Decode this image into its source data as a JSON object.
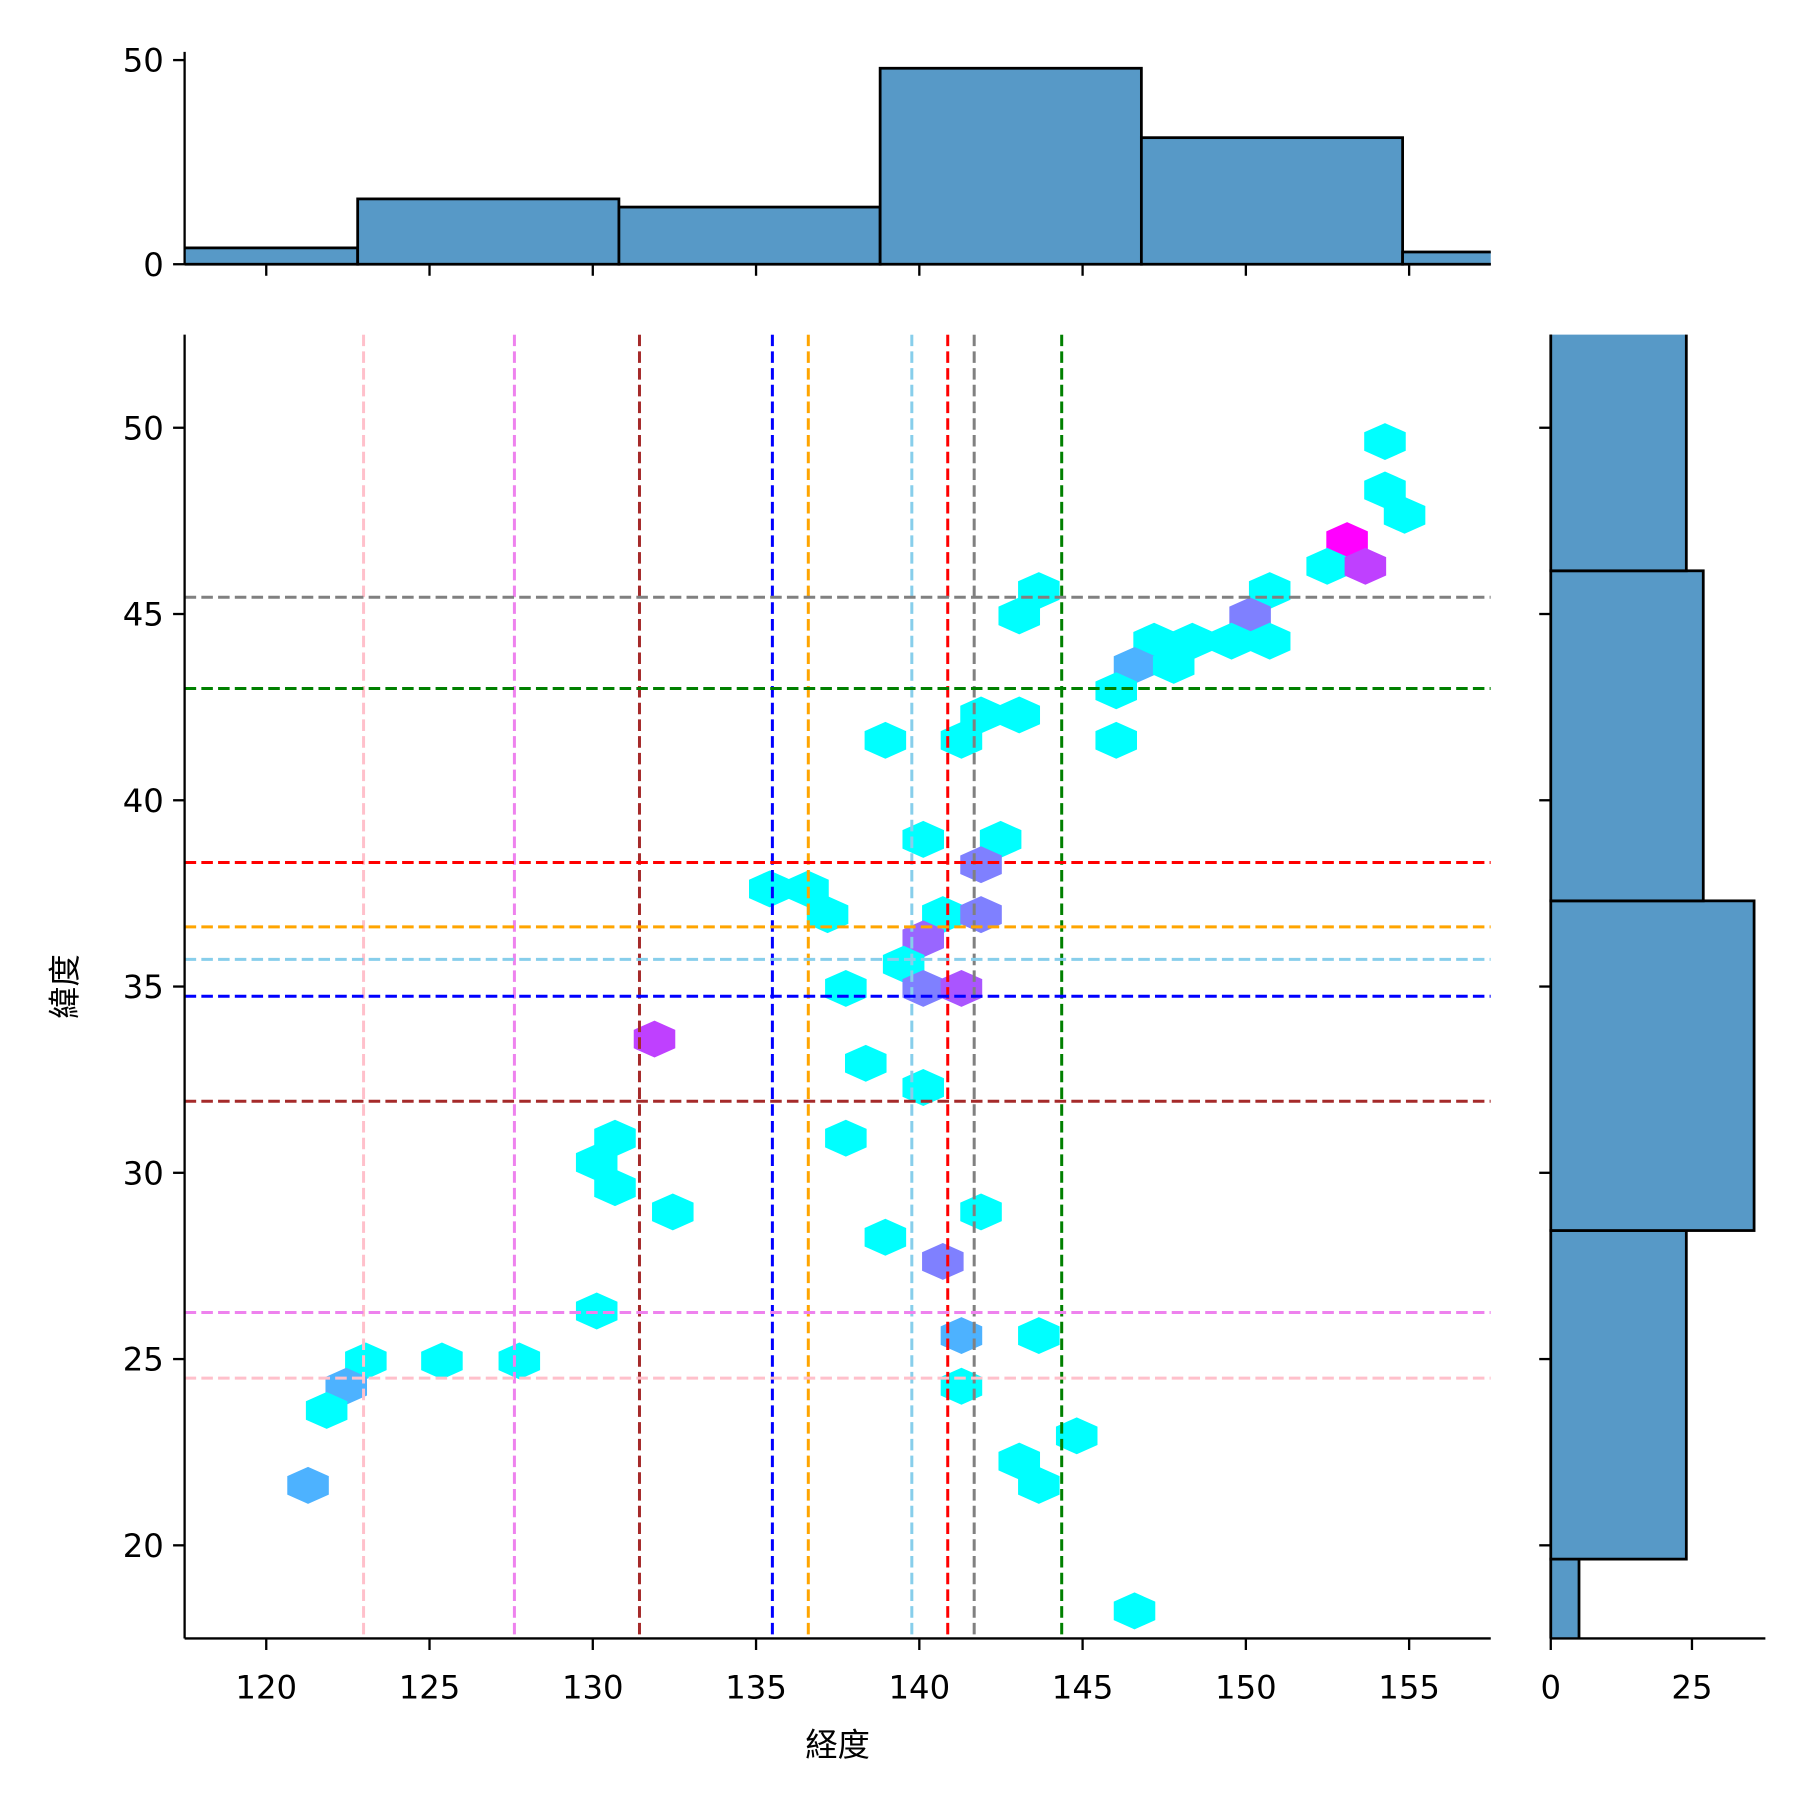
{
  "chart_data": {
    "type": "hexbin-jointplot",
    "xlabel": "経度",
    "ylabel": "緯度",
    "xlim": [
      117.5,
      157.5
    ],
    "ylim": [
      17.5,
      52.5
    ],
    "xticks": [
      "120",
      "125",
      "130",
      "135",
      "140",
      "145",
      "150",
      "155"
    ],
    "yticks": [
      "20",
      "25",
      "30",
      "35",
      "40",
      "45",
      "50"
    ],
    "grid": false,
    "hexbins": [
      {
        "x": 154.26,
        "y": 49.63,
        "color": "#00ffff"
      },
      {
        "x": 154.26,
        "y": 48.33,
        "color": "#00ffff"
      },
      {
        "x": 154.86,
        "y": 47.65,
        "color": "#00ffff"
      },
      {
        "x": 153.1,
        "y": 46.97,
        "color": "#ff00ff"
      },
      {
        "x": 152.49,
        "y": 46.28,
        "color": "#00ffff"
      },
      {
        "x": 153.66,
        "y": 46.28,
        "color": "#bf40ff"
      },
      {
        "x": 143.66,
        "y": 45.63,
        "color": "#00ffff"
      },
      {
        "x": 150.73,
        "y": 45.63,
        "color": "#00ffff"
      },
      {
        "x": 143.06,
        "y": 44.95,
        "color": "#00ffff"
      },
      {
        "x": 150.13,
        "y": 44.95,
        "color": "#7f80ff"
      },
      {
        "x": 147.19,
        "y": 44.27,
        "color": "#00ffff"
      },
      {
        "x": 148.36,
        "y": 44.27,
        "color": "#00ffff"
      },
      {
        "x": 149.56,
        "y": 44.27,
        "color": "#00ffff"
      },
      {
        "x": 150.73,
        "y": 44.27,
        "color": "#00ffff"
      },
      {
        "x": 146.59,
        "y": 43.62,
        "color": "#4db2ff"
      },
      {
        "x": 147.79,
        "y": 43.62,
        "color": "#00ffff"
      },
      {
        "x": 146.03,
        "y": 42.94,
        "color": "#00ffff"
      },
      {
        "x": 141.89,
        "y": 42.29,
        "color": "#00ffff"
      },
      {
        "x": 143.06,
        "y": 42.29,
        "color": "#00ffff"
      },
      {
        "x": 141.29,
        "y": 41.61,
        "color": "#00ffff"
      },
      {
        "x": 138.96,
        "y": 41.61,
        "color": "#00ffff"
      },
      {
        "x": 146.03,
        "y": 41.61,
        "color": "#00ffff"
      },
      {
        "x": 140.12,
        "y": 38.95,
        "color": "#00ffff"
      },
      {
        "x": 142.49,
        "y": 38.95,
        "color": "#00ffff"
      },
      {
        "x": 141.89,
        "y": 38.27,
        "color": "#7f80ff"
      },
      {
        "x": 135.42,
        "y": 37.62,
        "color": "#00ffff"
      },
      {
        "x": 136.59,
        "y": 37.62,
        "color": "#00ffff"
      },
      {
        "x": 137.19,
        "y": 36.93,
        "color": "#00ffff"
      },
      {
        "x": 140.72,
        "y": 36.93,
        "color": "#00ffff"
      },
      {
        "x": 141.89,
        "y": 36.93,
        "color": "#7f80ff"
      },
      {
        "x": 140.12,
        "y": 36.28,
        "color": "#9966ff"
      },
      {
        "x": 139.52,
        "y": 35.6,
        "color": "#00ffff"
      },
      {
        "x": 137.75,
        "y": 34.95,
        "color": "#00ffff"
      },
      {
        "x": 140.12,
        "y": 34.95,
        "color": "#7f80ff"
      },
      {
        "x": 141.29,
        "y": 34.95,
        "color": "#aa55ff"
      },
      {
        "x": 131.89,
        "y": 33.59,
        "color": "#bf40ff"
      },
      {
        "x": 138.36,
        "y": 32.94,
        "color": "#00ffff"
      },
      {
        "x": 140.12,
        "y": 32.29,
        "color": "#00ffff"
      },
      {
        "x": 130.68,
        "y": 30.93,
        "color": "#00ffff"
      },
      {
        "x": 137.75,
        "y": 30.93,
        "color": "#00ffff"
      },
      {
        "x": 130.12,
        "y": 30.28,
        "color": "#00ffff"
      },
      {
        "x": 130.68,
        "y": 29.6,
        "color": "#00ffff"
      },
      {
        "x": 132.45,
        "y": 28.95,
        "color": "#00ffff"
      },
      {
        "x": 141.89,
        "y": 28.95,
        "color": "#00ffff"
      },
      {
        "x": 138.96,
        "y": 28.27,
        "color": "#00ffff"
      },
      {
        "x": 140.72,
        "y": 27.62,
        "color": "#7f80ff"
      },
      {
        "x": 130.12,
        "y": 26.29,
        "color": "#00ffff"
      },
      {
        "x": 141.29,
        "y": 25.63,
        "color": "#4db2ff"
      },
      {
        "x": 143.66,
        "y": 25.63,
        "color": "#00ffff"
      },
      {
        "x": 123.05,
        "y": 24.95,
        "color": "#00ffff"
      },
      {
        "x": 125.38,
        "y": 24.95,
        "color": "#00ffff"
      },
      {
        "x": 127.75,
        "y": 24.95,
        "color": "#00ffff"
      },
      {
        "x": 122.45,
        "y": 24.27,
        "color": "#4db2ff"
      },
      {
        "x": 141.29,
        "y": 24.27,
        "color": "#00ffff"
      },
      {
        "x": 121.85,
        "y": 23.62,
        "color": "#00ffff"
      },
      {
        "x": 144.82,
        "y": 22.94,
        "color": "#00ffff"
      },
      {
        "x": 143.06,
        "y": 22.26,
        "color": "#00ffff"
      },
      {
        "x": 143.66,
        "y": 21.61,
        "color": "#00ffff"
      },
      {
        "x": 121.28,
        "y": 21.61,
        "color": "#4db2ff"
      },
      {
        "x": 146.59,
        "y": 18.24,
        "color": "#00ffff"
      }
    ],
    "vlines": [
      {
        "x": 122.98,
        "color": "pink"
      },
      {
        "x": 127.6,
        "color": "violet"
      },
      {
        "x": 131.43,
        "color": "brown"
      },
      {
        "x": 135.5,
        "color": "blue"
      },
      {
        "x": 136.6,
        "color": "orange"
      },
      {
        "x": 139.77,
        "color": "skyblue"
      },
      {
        "x": 140.87,
        "color": "red"
      },
      {
        "x": 141.68,
        "color": "gray"
      },
      {
        "x": 144.36,
        "color": "green"
      }
    ],
    "hlines": [
      {
        "y": 45.45,
        "color": "gray"
      },
      {
        "y": 43.0,
        "color": "green"
      },
      {
        "y": 38.33,
        "color": "red"
      },
      {
        "y": 36.6,
        "color": "orange"
      },
      {
        "y": 35.73,
        "color": "skyblue"
      },
      {
        "y": 34.74,
        "color": "blue"
      },
      {
        "y": 31.92,
        "color": "brown"
      },
      {
        "y": 26.25,
        "color": "violet"
      },
      {
        "y": 24.49,
        "color": "pink"
      }
    ],
    "top_hist": {
      "bin_edges": [
        114.8,
        122.8,
        130.8,
        138.8,
        146.8,
        154.8,
        162.8
      ],
      "counts": [
        4,
        16,
        14,
        48,
        31,
        3
      ],
      "ylim": [
        0,
        52
      ],
      "yticks": [
        "0",
        "50"
      ],
      "color": "#5799c7"
    },
    "right_hist": {
      "bin_edges": [
        10.8,
        19.63,
        28.45,
        37.3,
        46.16,
        55.0
      ],
      "counts": [
        5,
        24,
        36,
        27,
        24
      ],
      "xlim": [
        0,
        38
      ],
      "xticks": [
        "0",
        "25"
      ],
      "color": "#5799c7"
    }
  }
}
